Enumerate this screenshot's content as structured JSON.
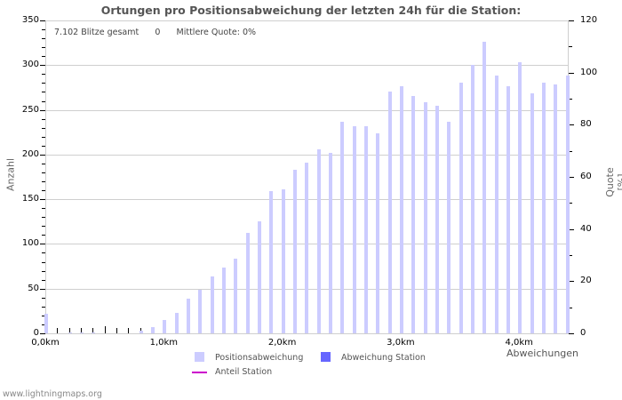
{
  "chart_data": {
    "type": "bar",
    "title": "Ortungen pro Positionsabweichung der letzten 24h für die Station:",
    "xlabel": "Abweichungen",
    "ylabel": "Anzahl",
    "ylabel_right": "Quote [%]",
    "ylim": [
      0,
      350
    ],
    "ylim_right": [
      0,
      120
    ],
    "yticks": [
      0,
      50,
      100,
      150,
      200,
      250,
      300,
      350
    ],
    "yticks_right": [
      0,
      20,
      40,
      60,
      80,
      100,
      120
    ],
    "xtick_labels": [
      "0,0km",
      "1,0km",
      "2,0km",
      "3,0km",
      "4,0km"
    ],
    "grid": true,
    "legend_position": "bottom",
    "categories": [
      "0.0",
      "0.1",
      "0.2",
      "0.3",
      "0.4",
      "0.5",
      "0.6",
      "0.7",
      "0.8",
      "0.9",
      "1.0",
      "1.1",
      "1.2",
      "1.3",
      "1.4",
      "1.5",
      "1.6",
      "1.7",
      "1.8",
      "1.9",
      "2.0",
      "2.1",
      "2.2",
      "2.3",
      "2.4",
      "2.5",
      "2.6",
      "2.7",
      "2.8",
      "2.9",
      "3.0",
      "3.1",
      "3.2",
      "3.3",
      "3.4",
      "3.5",
      "3.6",
      "3.7",
      "3.8",
      "3.9",
      "4.0",
      "4.1",
      "4.2",
      "4.3",
      "4.4"
    ],
    "series": [
      {
        "name": "Positionsabweichung",
        "color": "#ccccff",
        "values": [
          22,
          0,
          1,
          1,
          1,
          0,
          0,
          0,
          3,
          7,
          15,
          23,
          39,
          49,
          64,
          74,
          84,
          112,
          125,
          159,
          161,
          183,
          191,
          206,
          202,
          237,
          232,
          232,
          224,
          270,
          276,
          265,
          259,
          255,
          237,
          280,
          300,
          326,
          288,
          276,
          303,
          268,
          280,
          278,
          288
        ]
      },
      {
        "name": "Abweichung Station",
        "color": "#6666ff",
        "values": [
          0,
          0,
          0,
          0,
          0,
          0,
          0,
          0,
          0,
          0,
          0,
          0,
          0,
          0,
          0,
          0,
          0,
          0,
          0,
          0,
          0,
          0,
          0,
          0,
          0,
          0,
          0,
          0,
          0,
          0,
          0,
          0,
          0,
          0,
          0,
          0,
          0,
          0,
          0,
          0,
          0,
          0,
          0,
          0,
          0
        ]
      },
      {
        "name": "Anteil Station",
        "color": "#cc00cc",
        "type": "line",
        "values": []
      }
    ]
  },
  "info": {
    "total": "7.102 Blitze gesamt",
    "station_count": "0",
    "quote": "Mittlere Quote: 0%"
  },
  "legend": {
    "item1": "Positionsabweichung",
    "item2": "Abweichung Station",
    "item3": "Anteil Station"
  },
  "footer": "www.lightningmaps.org"
}
